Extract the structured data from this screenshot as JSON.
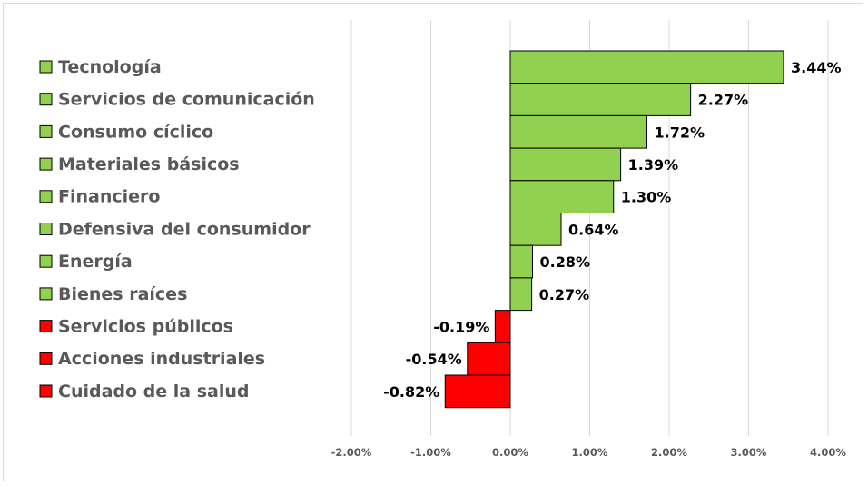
{
  "chart_data": {
    "type": "bar",
    "orientation": "horizontal",
    "categories": [
      "Tecnología",
      "Servicios de comunicación",
      "Consumo cíclico",
      "Materiales básicos",
      "Financiero",
      "Defensiva del consumidor",
      "Energía",
      "Bienes raíces",
      "Servicios públicos",
      "Acciones industriales",
      "Cuidado de la salud"
    ],
    "values": [
      3.44,
      2.27,
      1.72,
      1.39,
      1.3,
      0.64,
      0.28,
      0.27,
      -0.19,
      -0.54,
      -0.82
    ],
    "data_labels": [
      "3.44%",
      "2.27%",
      "1.72%",
      "1.39%",
      "1.30%",
      "0.64%",
      "0.28%",
      "0.27%",
      "-0.19%",
      "-0.54%",
      "-0.82%"
    ],
    "x_ticks": [
      -2,
      -1,
      0,
      1,
      2,
      3,
      4
    ],
    "x_tick_labels": [
      "-2.00%",
      "-1.00%",
      "0.00%",
      "1.00%",
      "2.00%",
      "3.00%",
      "4.00%"
    ],
    "xlim": [
      -2,
      4
    ],
    "grid": "vertical",
    "legend_position": "left",
    "colors": {
      "positive": "#92d050",
      "negative": "#ff0000",
      "outline": "#000000",
      "grid": "#d9d9d9"
    }
  }
}
